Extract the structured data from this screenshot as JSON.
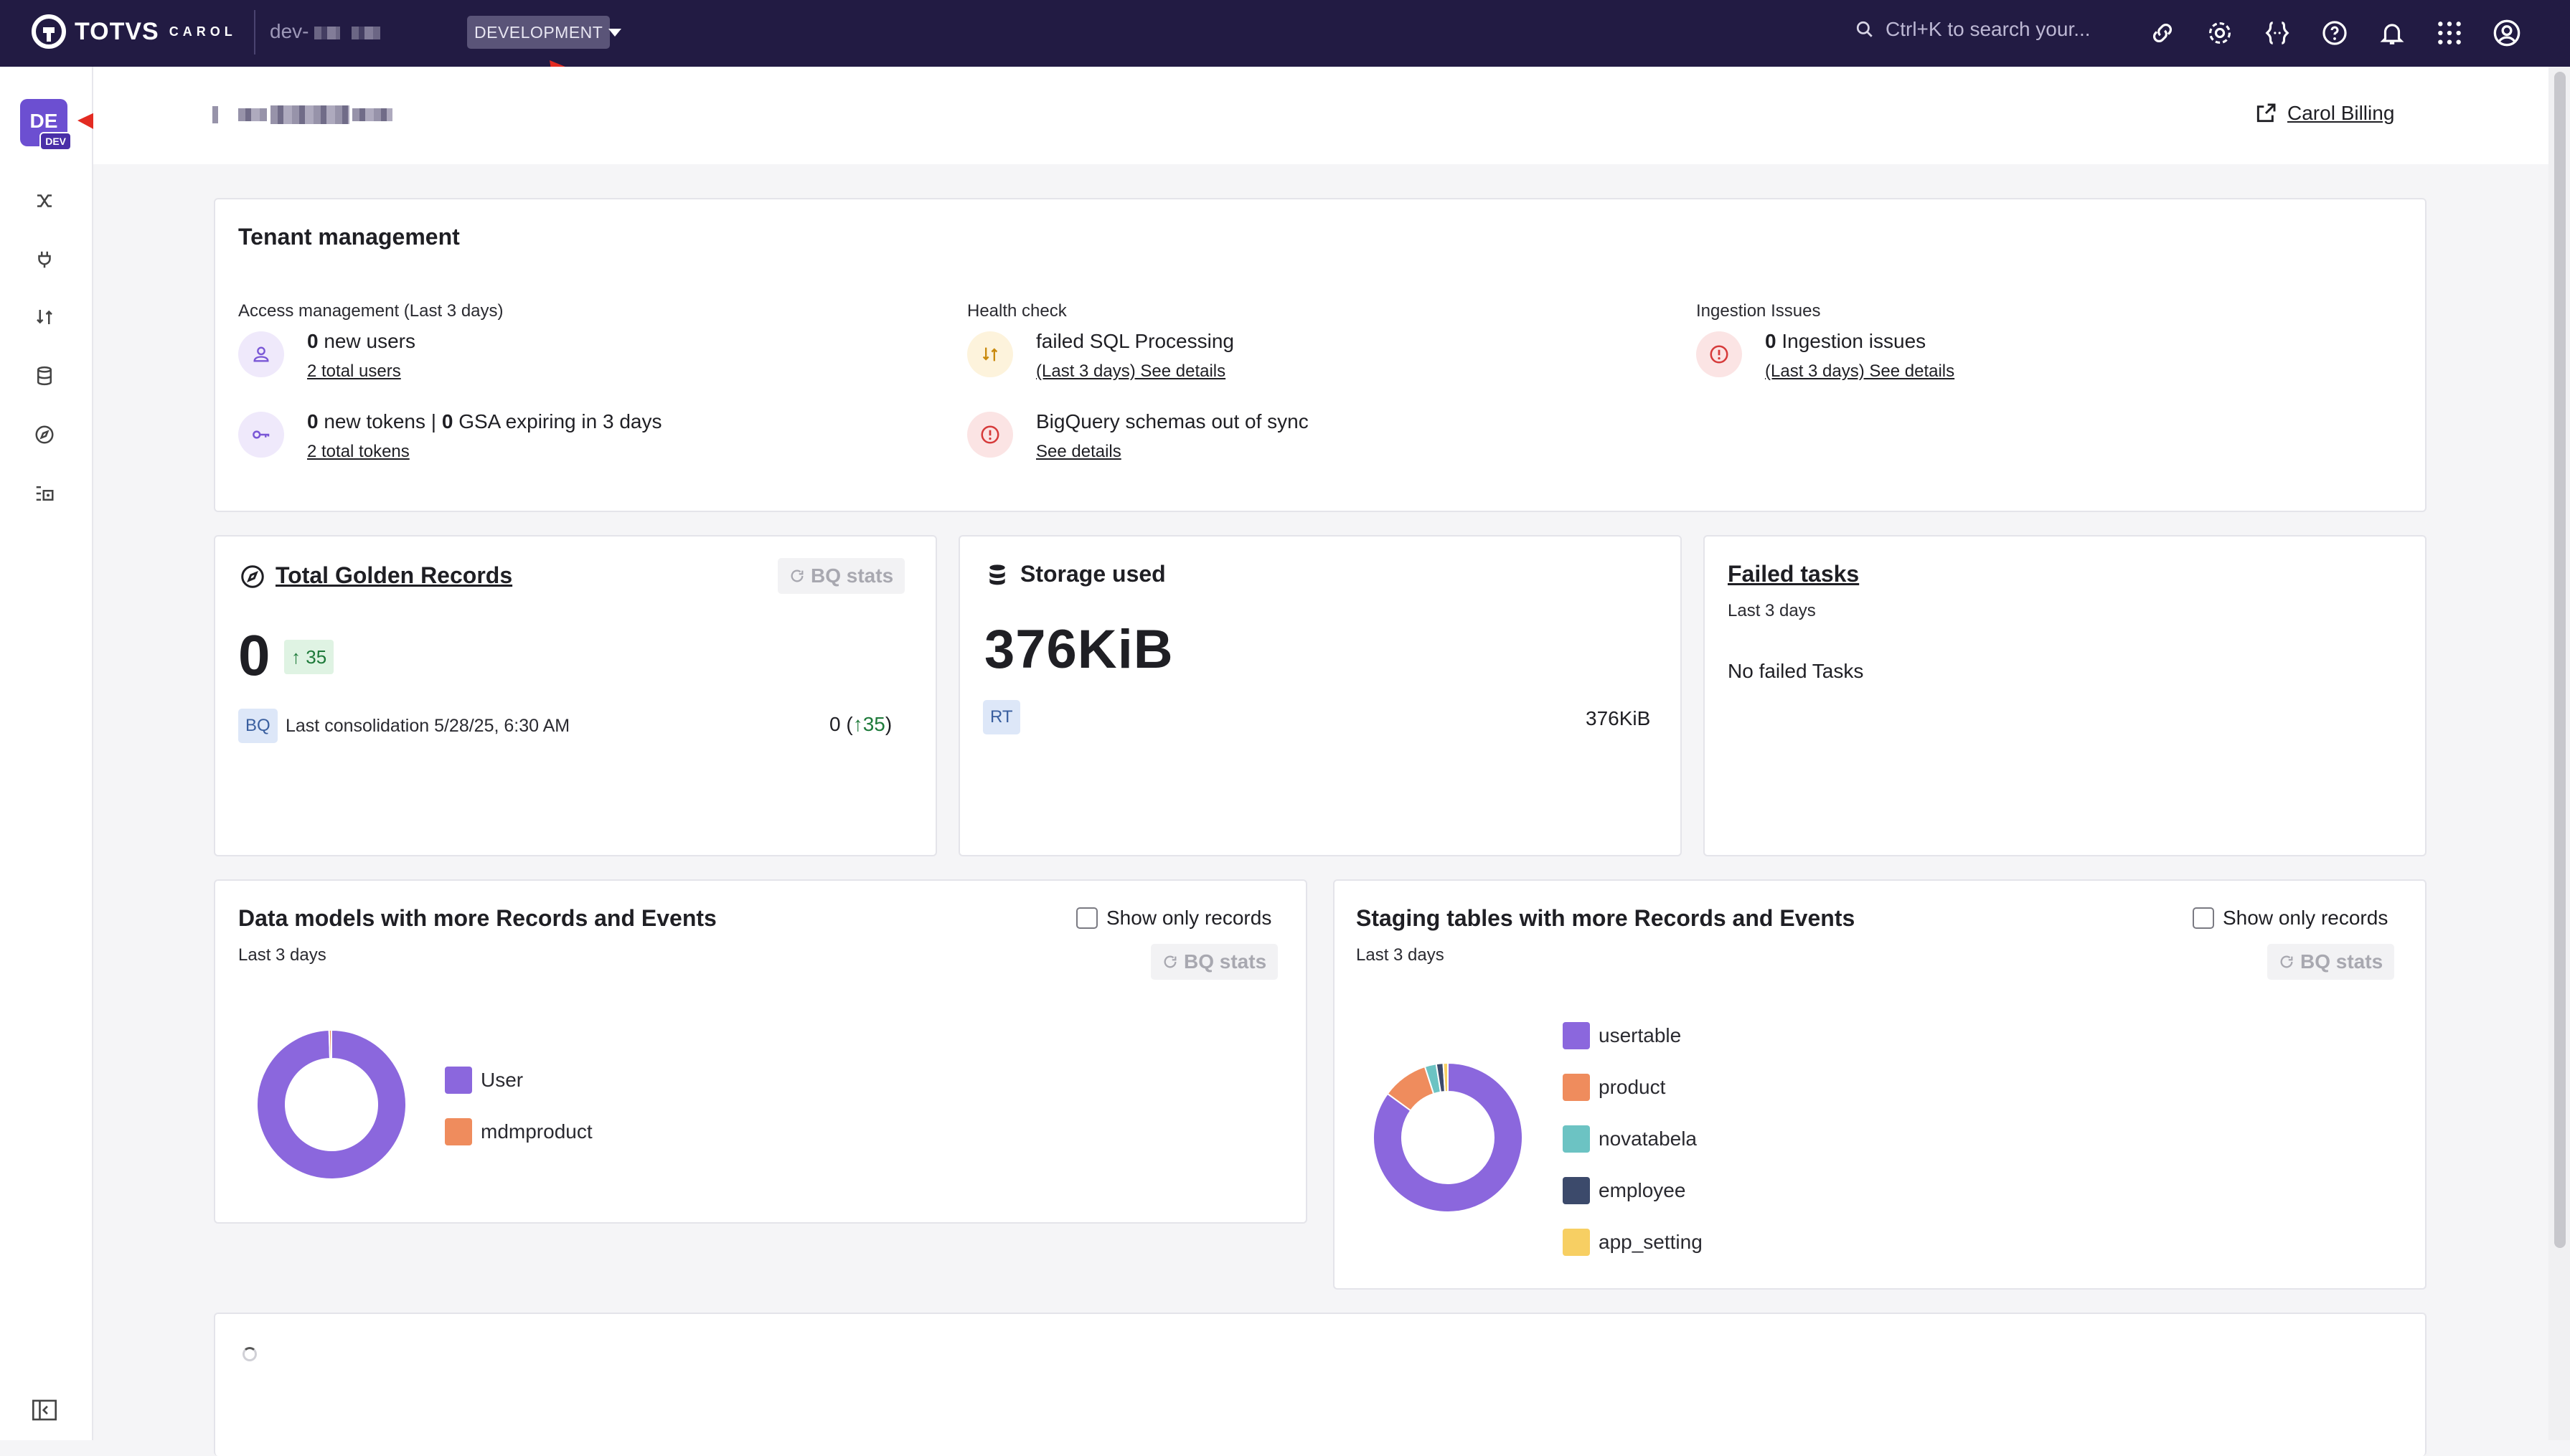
{
  "header": {
    "logo": "TOTVS",
    "logo_sub": "CAROL",
    "tenant": "dev-",
    "environment": "DEVELOPMENT",
    "search_placeholder": "Ctrl+K to search your..."
  },
  "sidebar": {
    "avatar_initials": "DE",
    "avatar_badge": "DEV"
  },
  "page": {
    "billing_link": "Carol Billing"
  },
  "tenant_management": {
    "title": "Tenant management",
    "access": {
      "label": "Access management (Last 3 days)",
      "new_users_count": "0",
      "new_users_text": "new users",
      "total_users_link": "2 total users",
      "new_tokens_count": "0",
      "new_tokens_text": "new tokens",
      "separator": "|",
      "gsa_count": "0",
      "gsa_text": "GSA expiring in 3 days",
      "total_tokens_link": "2 total tokens"
    },
    "health": {
      "label": "Health check",
      "sql_text": "failed SQL Processing",
      "sql_link": "(Last 3 days) See details",
      "bq_text": "BigQuery schemas out of sync",
      "bq_link": "See details"
    },
    "ingestion": {
      "label": "Ingestion Issues",
      "count": "0",
      "text": "Ingestion issues",
      "link": "(Last 3 days) See details"
    }
  },
  "golden_records": {
    "title": "Total Golden Records",
    "bq_button": "BQ stats",
    "value": "0",
    "delta": "35",
    "tag": "BQ",
    "consolidation": "Last consolidation 5/28/25, 6:30 AM",
    "right_value": "0",
    "right_delta": "35"
  },
  "storage": {
    "title": "Storage used",
    "value": "376KiB",
    "tag": "RT",
    "right_value": "376KiB"
  },
  "failed_tasks": {
    "title": "Failed tasks",
    "subtitle": "Last 3 days",
    "message": "No failed Tasks"
  },
  "data_models": {
    "title": "Data models with more Records and Events",
    "subtitle": "Last 3 days",
    "checkbox_label": "Show only records",
    "bq_button": "BQ stats",
    "chart_data": {
      "type": "pie",
      "categories": [
        "User",
        "mdmproduct"
      ],
      "values": [
        99.5,
        0.5
      ],
      "colors": [
        "#8b67dd",
        "#ef8c5d"
      ]
    }
  },
  "staging_tables": {
    "title": "Staging tables with more Records and Events",
    "subtitle": "Last 3 days",
    "checkbox_label": "Show only records",
    "bq_button": "BQ stats",
    "chart_data": {
      "type": "pie",
      "categories": [
        "usertable",
        "product",
        "novatabela",
        "employee",
        "app_setting"
      ],
      "values": [
        85,
        10,
        2.5,
        1.5,
        1
      ],
      "colors": [
        "#8b67dd",
        "#ef8c5d",
        "#6cc3c3",
        "#3c4a6b",
        "#f7cf63"
      ]
    }
  }
}
